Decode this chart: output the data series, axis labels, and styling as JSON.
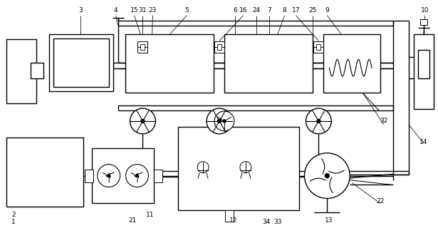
{
  "bg_color": "#ffffff",
  "line_color": "#000000",
  "fig_w": 6.15,
  "fig_h": 3.2,
  "dpi": 100
}
